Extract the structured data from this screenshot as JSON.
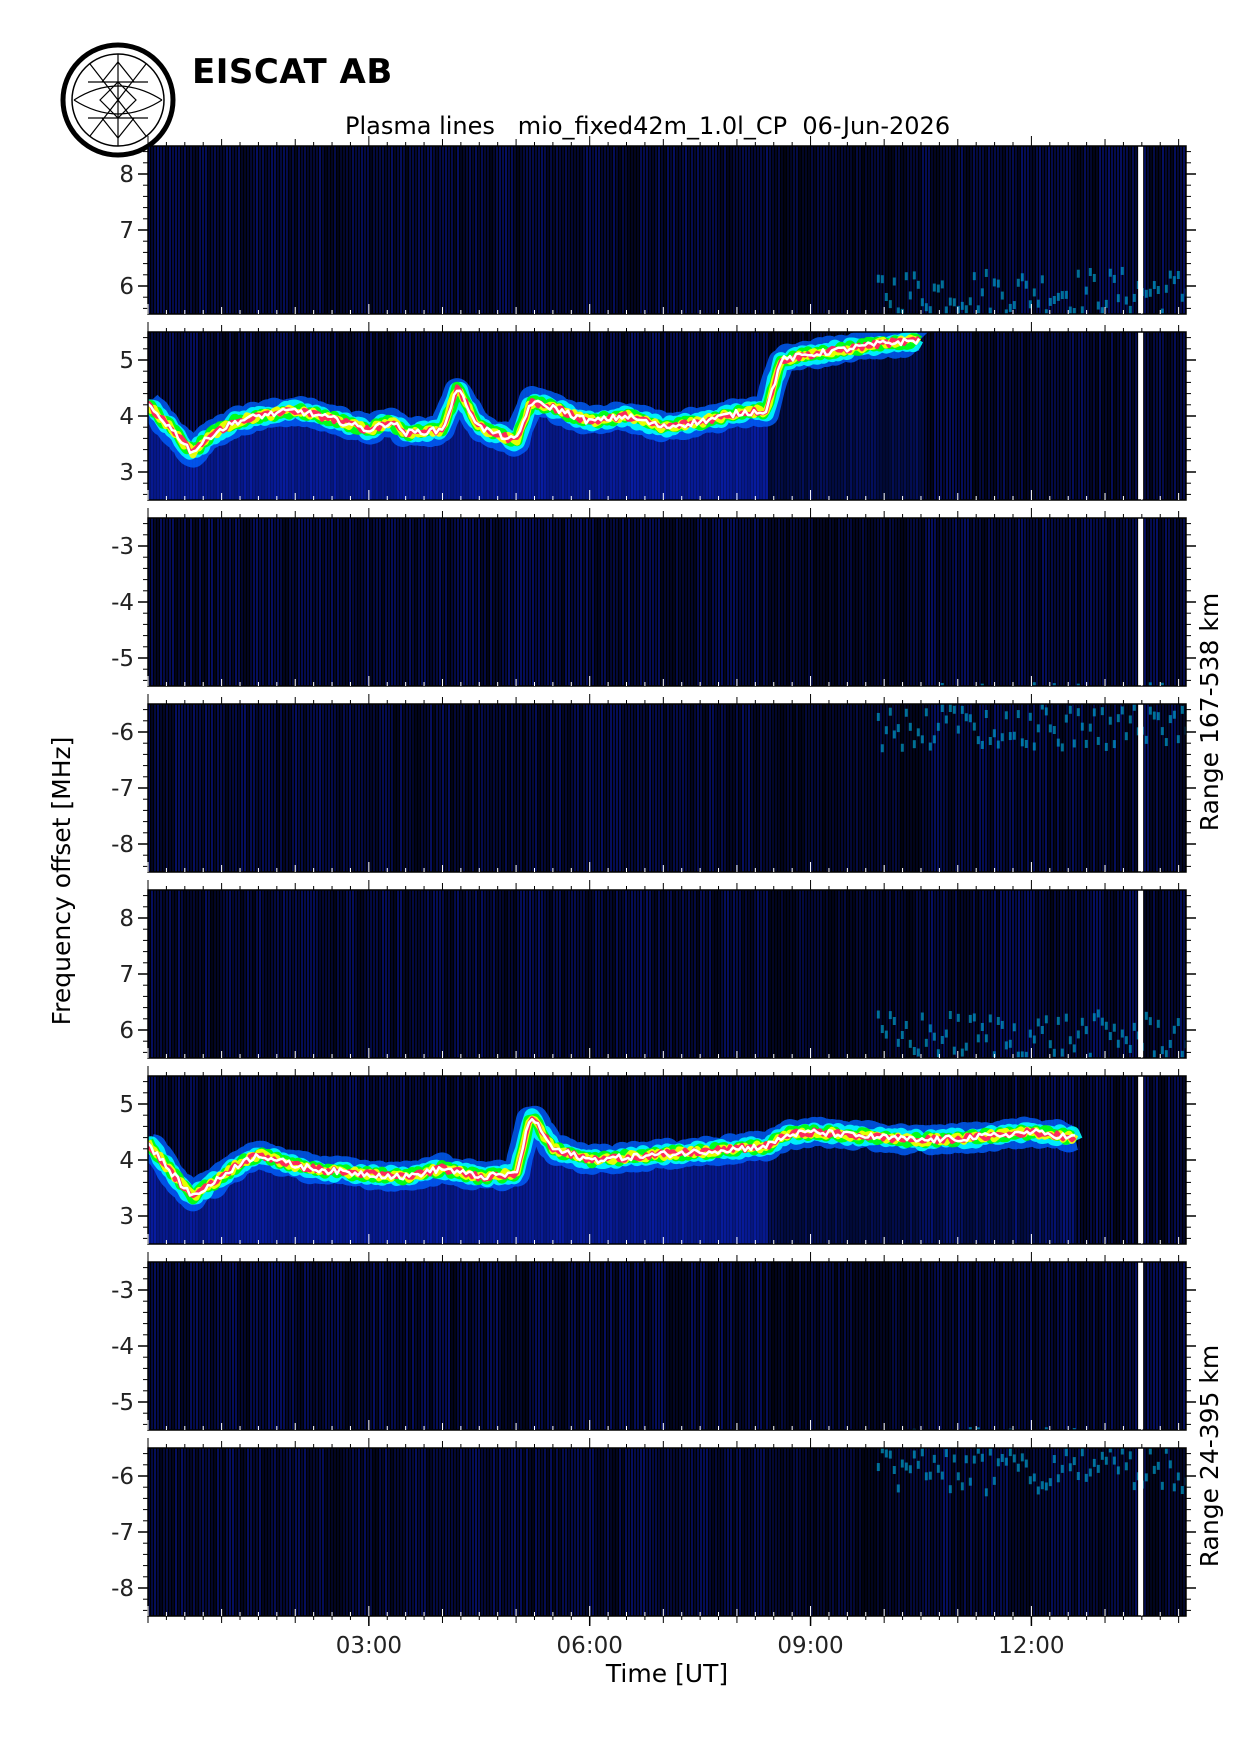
{
  "header": {
    "organization": "EISCAT AB",
    "title": "Plasma lines   mio_fixed42m_1.0l_CP  06-Jun-2026"
  },
  "logo": {
    "icon": "eiscat-logo-icon"
  },
  "chart_data": {
    "type": "heatmap",
    "title": "Plasma lines   mio_fixed42m_1.0l_CP  06-Jun-2026",
    "xlabel": "Time [UT]",
    "ylabel": "Frequency offset [MHz]",
    "x_unit": "hours UT",
    "xlim": [
      0.0,
      14.1
    ],
    "x_ticks": [
      3,
      6,
      9,
      12
    ],
    "x_tick_labels": [
      "03:00",
      "06:00",
      "09:00",
      "12:00"
    ],
    "colormap": [
      "#000000",
      "#0000ff",
      "#00ffff",
      "#00ff00",
      "#ffff00",
      "#ff0000",
      "#ff00ff",
      "#ffffff"
    ],
    "data_gap_x": 13.45,
    "range_groups": [
      {
        "range_label": "Range 167-538 km",
        "panels": [
          {
            "ylim": [
              5.5,
              8.5
            ],
            "y_ticks": [
              6,
              7,
              8
            ],
            "y_tick_labels": [
              "6",
              "7",
              "8"
            ]
          },
          {
            "ylim": [
              2.5,
              5.5
            ],
            "y_ticks": [
              3,
              4,
              5
            ],
            "y_tick_labels": [
              "3",
              "4",
              "5"
            ]
          },
          {
            "ylim": [
              -5.5,
              -2.5
            ],
            "y_ticks": [
              -5,
              -4,
              -3
            ],
            "y_tick_labels": [
              "-5",
              "-4",
              "-3"
            ]
          },
          {
            "ylim": [
              -8.5,
              -5.5
            ],
            "y_ticks": [
              -8,
              -7,
              -6
            ],
            "y_tick_labels": [
              "-8",
              "-7",
              "-6"
            ]
          }
        ],
        "plasma_line_trace": {
          "time_ut": [
            0.0,
            0.3,
            0.6,
            0.9,
            1.2,
            1.5,
            2.0,
            2.5,
            3.0,
            3.3,
            3.5,
            4.0,
            4.2,
            4.5,
            4.8,
            5.0,
            5.2,
            5.5,
            6.0,
            6.5,
            7.0,
            7.5,
            8.0,
            8.4,
            8.6,
            9.0,
            9.5,
            10.0,
            10.5
          ],
          "freq_mhz": [
            4.2,
            3.8,
            3.35,
            3.7,
            3.9,
            4.0,
            4.1,
            3.95,
            3.75,
            3.9,
            3.7,
            3.75,
            4.5,
            3.8,
            3.65,
            3.55,
            4.25,
            4.15,
            3.9,
            4.0,
            3.8,
            3.9,
            4.05,
            4.1,
            5.0,
            5.1,
            5.2,
            5.3,
            5.35
          ]
        }
      },
      {
        "range_label": "Range 24-395 km",
        "panels": [
          {
            "ylim": [
              5.5,
              8.5
            ],
            "y_ticks": [
              6,
              7,
              8
            ],
            "y_tick_labels": [
              "6",
              "7",
              "8"
            ]
          },
          {
            "ylim": [
              2.5,
              5.5
            ],
            "y_ticks": [
              3,
              4,
              5
            ],
            "y_tick_labels": [
              "3",
              "4",
              "5"
            ]
          },
          {
            "ylim": [
              -5.5,
              -2.5
            ],
            "y_ticks": [
              -5,
              -4,
              -3
            ],
            "y_tick_labels": [
              "-5",
              "-4",
              "-3"
            ]
          },
          {
            "ylim": [
              -8.5,
              -5.5
            ],
            "y_ticks": [
              -8,
              -7,
              -6
            ],
            "y_tick_labels": [
              "-8",
              "-7",
              "-6"
            ]
          }
        ],
        "plasma_line_trace": {
          "time_ut": [
            0.0,
            0.3,
            0.6,
            0.9,
            1.2,
            1.5,
            2.0,
            2.5,
            3.0,
            3.5,
            4.0,
            4.5,
            5.0,
            5.2,
            5.5,
            6.0,
            6.5,
            7.0,
            7.5,
            8.0,
            8.4,
            8.7,
            9.0,
            9.5,
            10.0,
            10.5,
            11.2,
            12.0,
            12.6
          ],
          "freq_mhz": [
            4.3,
            3.8,
            3.35,
            3.6,
            3.9,
            4.1,
            3.9,
            3.8,
            3.75,
            3.7,
            3.85,
            3.7,
            3.75,
            4.8,
            4.2,
            4.0,
            4.05,
            4.1,
            4.15,
            4.2,
            4.25,
            4.45,
            4.5,
            4.45,
            4.4,
            4.35,
            4.4,
            4.5,
            4.4
          ]
        }
      }
    ]
  }
}
